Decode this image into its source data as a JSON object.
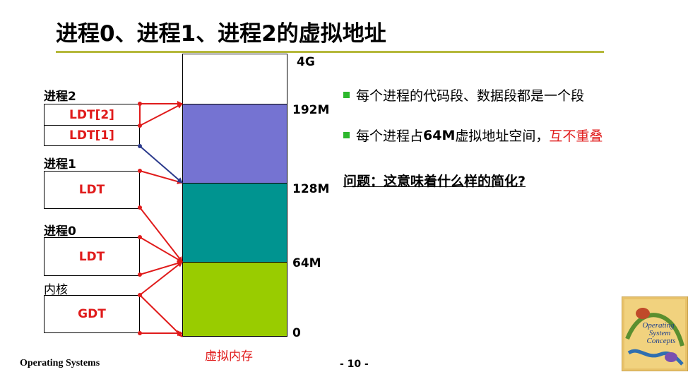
{
  "title": "进程0、进程1、进程2的虚拟地址",
  "processes": {
    "p2": {
      "label": "进程2",
      "boxes": [
        "LDT[2]",
        "LDT[1]"
      ]
    },
    "p1": {
      "label": "进程1",
      "box": "LDT"
    },
    "p0": {
      "label": "进程0",
      "box": "LDT"
    },
    "kernel": {
      "label": "内核",
      "box": "GDT"
    }
  },
  "memory": {
    "caption": "虚拟内存",
    "addresses": [
      "4G",
      "192M",
      "128M",
      "64M",
      "0"
    ],
    "colors": {
      "p2_segment": "#7573d2",
      "p1_segment": "#009490",
      "p0_segment": "#99cc00",
      "arrow_red": "#e01b1b",
      "arrow_blue": "#2b3a8c"
    }
  },
  "bullets": {
    "b1": "每个进程的代码段、数据段都是一个段",
    "b2_prefix": "每个进程占",
    "b2_bold": "64M",
    "b2_mid": "虚拟地址空间，",
    "b2_red": "互不重叠",
    "bullet_color": "#2db82d"
  },
  "question": "问题：这意味着什么样的简化?",
  "footer": {
    "left": "Operating Systems",
    "page": "- 10 -"
  },
  "book_cover": {
    "icon": "operating-system-concepts-book-cover",
    "text": [
      "Operating",
      "System",
      "Concepts"
    ]
  }
}
